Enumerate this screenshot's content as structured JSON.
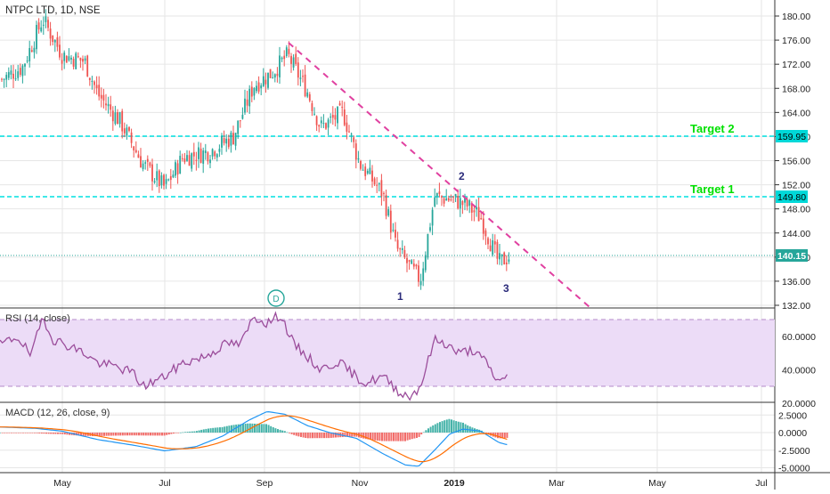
{
  "header": {
    "symbol_title": "NTPC LTD, 1D, NSE"
  },
  "colors": {
    "up": "#26a69a",
    "down": "#ef5350",
    "rsi_line": "#9b4d9b",
    "rsi_band": "#e9d6f5",
    "macd_line": "#2196f3",
    "signal_line": "#ff6d00",
    "hist_pos": "#26a69a",
    "hist_neg": "#ef5350",
    "target_line": "#00e5e5",
    "target_text": "#00e000",
    "trend_line": "#e040a0",
    "wave_label": "#2a2a7a",
    "price_tag": "#26a69a"
  },
  "price_axis": {
    "ticks": [
      "180.00",
      "176.00",
      "172.00",
      "168.00",
      "164.00",
      "160.00",
      "156.00",
      "152.00",
      "148.00",
      "144.00",
      "140.00",
      "136.00",
      "132.00"
    ]
  },
  "time_axis": {
    "labels": [
      "May",
      "Jul",
      "Sep",
      "Nov",
      "2019",
      "Mar",
      "May",
      "Jul"
    ]
  },
  "levels": {
    "target2": {
      "label": "Target 2",
      "price": 159.95,
      "tag": "159.95"
    },
    "target1": {
      "label": "Target 1",
      "price": 149.8,
      "tag": "149.80"
    },
    "last": {
      "price": 140.15,
      "tag": "140.15"
    }
  },
  "wave_labels": {
    "one": "1",
    "two": "2",
    "three": "3"
  },
  "dividend_marker": "D",
  "rsi": {
    "title": "RSI (14, close)",
    "ticks": [
      "60.0000",
      "40.0000",
      "20.0000"
    ]
  },
  "macd": {
    "title": "MACD (12, 26, close, 9)",
    "ticks": [
      "2.5000",
      "0.0000",
      "-2.5000",
      "-5.0000"
    ]
  },
  "chart_data": {
    "type": "candlestick",
    "title": "NTPC LTD, 1D, NSE",
    "ylim": [
      132,
      182
    ],
    "trendline": {
      "from_price": 175.5,
      "to_price": 132.0
    },
    "price_path": [
      [
        "Apr",
        169.5
      ],
      [
        "mid-Apr",
        172.5
      ],
      [
        "late-Apr",
        179.5
      ],
      [
        "May",
        173.5
      ],
      [
        "mid-May",
        169.0
      ],
      [
        "Jun",
        166.5
      ],
      [
        "mid-Jun",
        161.5
      ],
      [
        "late-Jun",
        155.0
      ],
      [
        "Jul",
        151.5
      ],
      [
        "mid-Jul",
        155.5
      ],
      [
        "Aug",
        157.0
      ],
      [
        "mid-Aug",
        160.0
      ],
      [
        "late-Aug",
        169.0
      ],
      [
        "Sep",
        170.5
      ],
      [
        "mid-Sep",
        172.0
      ],
      [
        "Oct",
        164.0
      ],
      [
        "mid-Oct",
        161.5
      ],
      [
        "Nov",
        155.5
      ],
      [
        "mid-Nov",
        149.0
      ],
      [
        "late-Nov",
        141.0
      ],
      [
        "Dec",
        136.5
      ],
      [
        "mid-Dec",
        150.0
      ],
      [
        "late-Dec",
        149.5
      ],
      [
        "Jan",
        148.5
      ],
      [
        "mid-Jan",
        145.0
      ],
      [
        "late-Jan",
        138.5
      ],
      [
        "Feb",
        140.15
      ]
    ],
    "rsi_path": [
      [
        "Apr",
        55
      ],
      [
        "late-Apr",
        72
      ],
      [
        "May",
        58
      ],
      [
        "Jun",
        45
      ],
      [
        "mid-Jun",
        38
      ],
      [
        "Jul",
        30
      ],
      [
        "Aug",
        40
      ],
      [
        "late-Aug",
        58
      ],
      [
        "Sep",
        72
      ],
      [
        "mid-Sep",
        73
      ],
      [
        "Oct",
        45
      ],
      [
        "Nov",
        36
      ],
      [
        "Dec",
        24
      ],
      [
        "mid-Dec",
        58
      ],
      [
        "Jan",
        52
      ],
      [
        "late-Jan",
        32
      ],
      [
        "Feb",
        40
      ]
    ],
    "macd_path": [
      [
        "Apr",
        0.8
      ],
      [
        "May",
        0.3
      ],
      [
        "Jun",
        -1.2
      ],
      [
        "Jul",
        -2.6
      ],
      [
        "Aug",
        -1.0
      ],
      [
        "Sep",
        3.0
      ],
      [
        "mid-Sep",
        2.6
      ],
      [
        "Oct",
        0.0
      ],
      [
        "Nov",
        -2.0
      ],
      [
        "Dec",
        -4.8
      ],
      [
        "mid-Dec",
        -2.0
      ],
      [
        "Jan",
        0.4
      ],
      [
        "late-Jan",
        -0.5
      ],
      [
        "Feb",
        -1.8
      ]
    ]
  }
}
